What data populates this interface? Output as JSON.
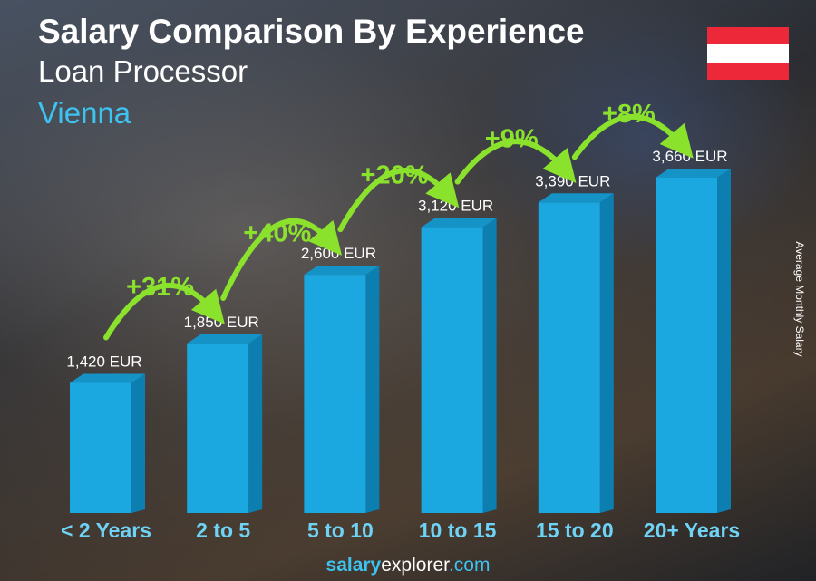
{
  "header": {
    "title": "Salary Comparison By Experience",
    "job": "Loan Processor",
    "city": "Vienna"
  },
  "flag": {
    "country": "Austria",
    "colors": [
      "#ED2939",
      "#FFFFFF",
      "#ED2939"
    ]
  },
  "footer": {
    "brand_bold": "salary",
    "brand_rest": "explorer",
    "brand_tld": ".com"
  },
  "chart_data": {
    "type": "bar",
    "title": "Salary Comparison By Experience",
    "ylabel": "Average Monthly Salary",
    "categories": [
      "< 2 Years",
      "2 to 5",
      "5 to 10",
      "10 to 15",
      "15 to 20",
      "20+ Years"
    ],
    "values": [
      1420,
      1850,
      2600,
      3120,
      3390,
      3660
    ],
    "value_labels": [
      "1,420 EUR",
      "1,850 EUR",
      "2,600 EUR",
      "3,120 EUR",
      "3,390 EUR",
      "3,660 EUR"
    ],
    "increases": [
      "+31%",
      "+40%",
      "+20%",
      "+9%",
      "+8%"
    ],
    "unit": "EUR",
    "colors": {
      "bar": "#1ba8e0",
      "bar_side": "#0d7eb0",
      "bar_top": "#1592c6",
      "increase": "#8be22c",
      "category": "#6fd3f5"
    }
  }
}
